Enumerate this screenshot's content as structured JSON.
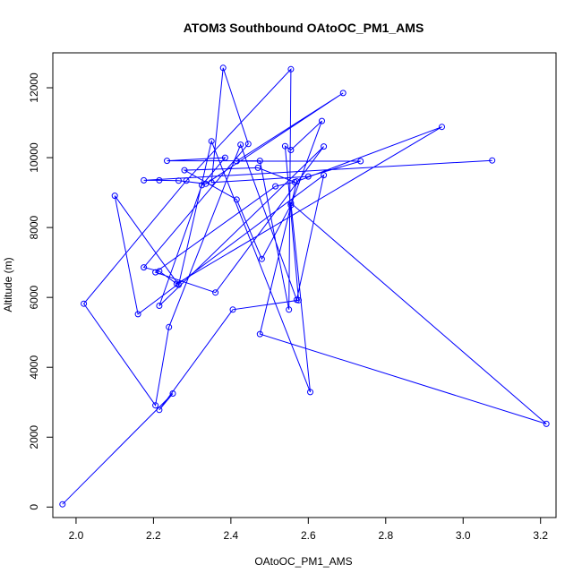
{
  "chart_data": {
    "type": "line",
    "title": "ATOM3 Southbound OAtoOC_PM1_AMS",
    "xlabel": "OAtoOC_PM1_AMS",
    "ylabel": "Altitude (m)",
    "xlim": [
      1.94,
      3.24
    ],
    "ylim": [
      -300,
      13000
    ],
    "xticks": [
      2.0,
      2.2,
      2.4,
      2.6,
      2.8,
      3.0,
      3.2
    ],
    "yticks": [
      0,
      2000,
      4000,
      6000,
      8000,
      10000,
      12000
    ],
    "xtick_labels": [
      "2.0",
      "2.2",
      "2.4",
      "2.6",
      "2.8",
      "3.0",
      "3.2"
    ],
    "ytick_labels": [
      "0",
      "2000",
      "4000",
      "6000",
      "8000",
      "10000",
      "12000"
    ],
    "grid": false,
    "markers": "open-circle",
    "series": [
      {
        "color": "#0000ff",
        "x": [
          1.965,
          2.25,
          2.215,
          2.405,
          2.575,
          2.54,
          2.555,
          2.635,
          2.555,
          2.48,
          2.415,
          2.28,
          2.47,
          2.565,
          2.515,
          2.205,
          2.36,
          2.64,
          2.215,
          2.325,
          2.385,
          2.235,
          2.475,
          2.55,
          2.555,
          2.285,
          2.02,
          2.205,
          2.24,
          2.425,
          2.57,
          2.64,
          2.16,
          2.1,
          2.265,
          2.35,
          2.605,
          2.555,
          3.215,
          2.475,
          2.57,
          2.945,
          2.26,
          2.215,
          2.175,
          2.445,
          2.38,
          2.35,
          2.6,
          2.735,
          2.415,
          2.69,
          2.335,
          2.265,
          2.215,
          2.175,
          3.075
        ],
        "y": [
          80,
          3250,
          2780,
          5650,
          5920,
          10330,
          10220,
          11050,
          8640,
          7100,
          8800,
          9640,
          9710,
          9300,
          9180,
          6720,
          6140,
          10320,
          5760,
          9210,
          10000,
          9910,
          9910,
          5650,
          12530,
          9340,
          5820,
          2910,
          5150,
          10370,
          5930,
          9500,
          5520,
          8910,
          6360,
          10470,
          3290,
          8700,
          2380,
          4950,
          9320,
          10880,
          6390,
          6750,
          6860,
          10390,
          12570,
          9290,
          9460,
          9900,
          9900,
          11850,
          9250,
          9340,
          9350,
          9350,
          9920
        ]
      }
    ]
  }
}
